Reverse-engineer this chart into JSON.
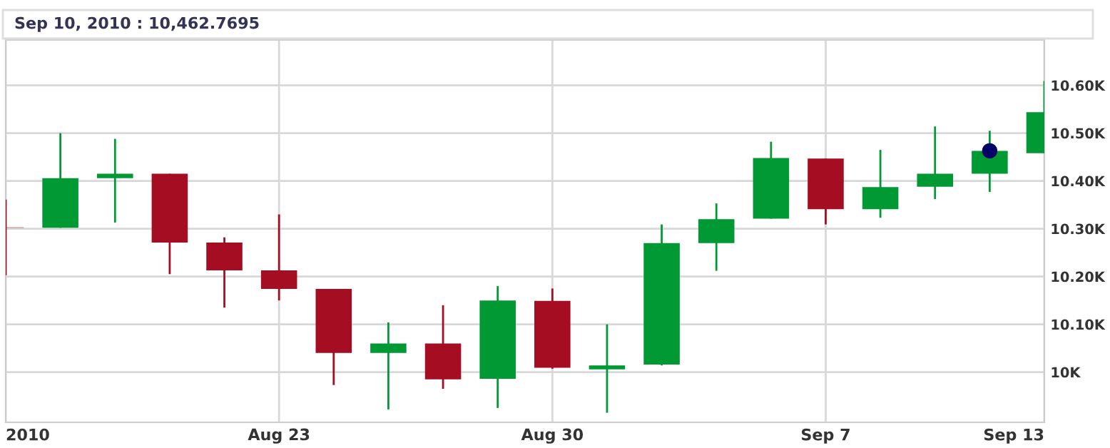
{
  "chart_data": {
    "type": "candlestick",
    "annotations": [
      "Sep 10, 2010 : 10,462.7695"
    ],
    "categories": [
      "2010",
      null,
      null,
      null,
      null,
      "Aug 23",
      null,
      null,
      null,
      null,
      "Aug 30",
      null,
      null,
      null,
      null,
      "Sep 7",
      null,
      null,
      null,
      "Sep 13"
    ],
    "ohlc": [
      [
        10303,
        10361,
        10203,
        10302
      ],
      [
        10302,
        10500,
        10302,
        10406
      ],
      [
        10406,
        10488,
        10313,
        10415
      ],
      [
        10415,
        10415,
        10205,
        10271
      ],
      [
        10271,
        10282,
        10135,
        10213
      ],
      [
        10213,
        10330,
        10150,
        10174
      ],
      [
        10174,
        10174,
        9973,
        10040
      ],
      [
        10040,
        10104,
        9922,
        10060
      ],
      [
        10060,
        10140,
        9965,
        9985
      ],
      [
        9986,
        10180,
        9925,
        10150
      ],
      [
        10149,
        10175,
        10007,
        10009
      ],
      [
        10006,
        10100,
        9915,
        10014
      ],
      [
        10016,
        10309,
        10014,
        10270
      ],
      [
        10270,
        10353,
        10212,
        10320
      ],
      [
        10321,
        10482,
        10321,
        10448
      ],
      [
        10447,
        10447,
        10309,
        10341
      ],
      [
        10341,
        10465,
        10323,
        10387
      ],
      [
        10388,
        10514,
        10362,
        10415
      ],
      [
        10415,
        10505,
        10377,
        10463
      ],
      [
        10458,
        10609,
        10458,
        10544
      ]
    ],
    "colors": [
      "#a50d22",
      "#009933",
      "#009933",
      "#a50d22",
      "#a50d22",
      "#a50d22",
      "#a50d22",
      "#009933",
      "#a50d22",
      "#009933",
      "#a50d22",
      "#009933",
      "#009933",
      "#009933",
      "#009933",
      "#a50d22",
      "#009933",
      "#009933",
      "#009933",
      "#009933"
    ],
    "series": [
      {
        "type": "scatter",
        "color": "#000066",
        "values": [
          null,
          null,
          null,
          null,
          null,
          null,
          null,
          null,
          null,
          null,
          null,
          null,
          null,
          null,
          null,
          null,
          null,
          null,
          10463,
          null
        ]
      }
    ],
    "ylim": [
      9895,
      10695
    ],
    "yticks": [
      {
        "value": 10000,
        "label": "10K"
      },
      {
        "value": 10100,
        "label": "10.10K"
      },
      {
        "value": 10200,
        "label": "10.20K"
      },
      {
        "value": 10300,
        "label": "10.30K"
      },
      {
        "value": 10400,
        "label": "10.40K"
      },
      {
        "value": 10500,
        "label": "10.50K"
      },
      {
        "value": 10600,
        "label": "10.60K"
      }
    ],
    "grid": true,
    "marker": "circle"
  }
}
